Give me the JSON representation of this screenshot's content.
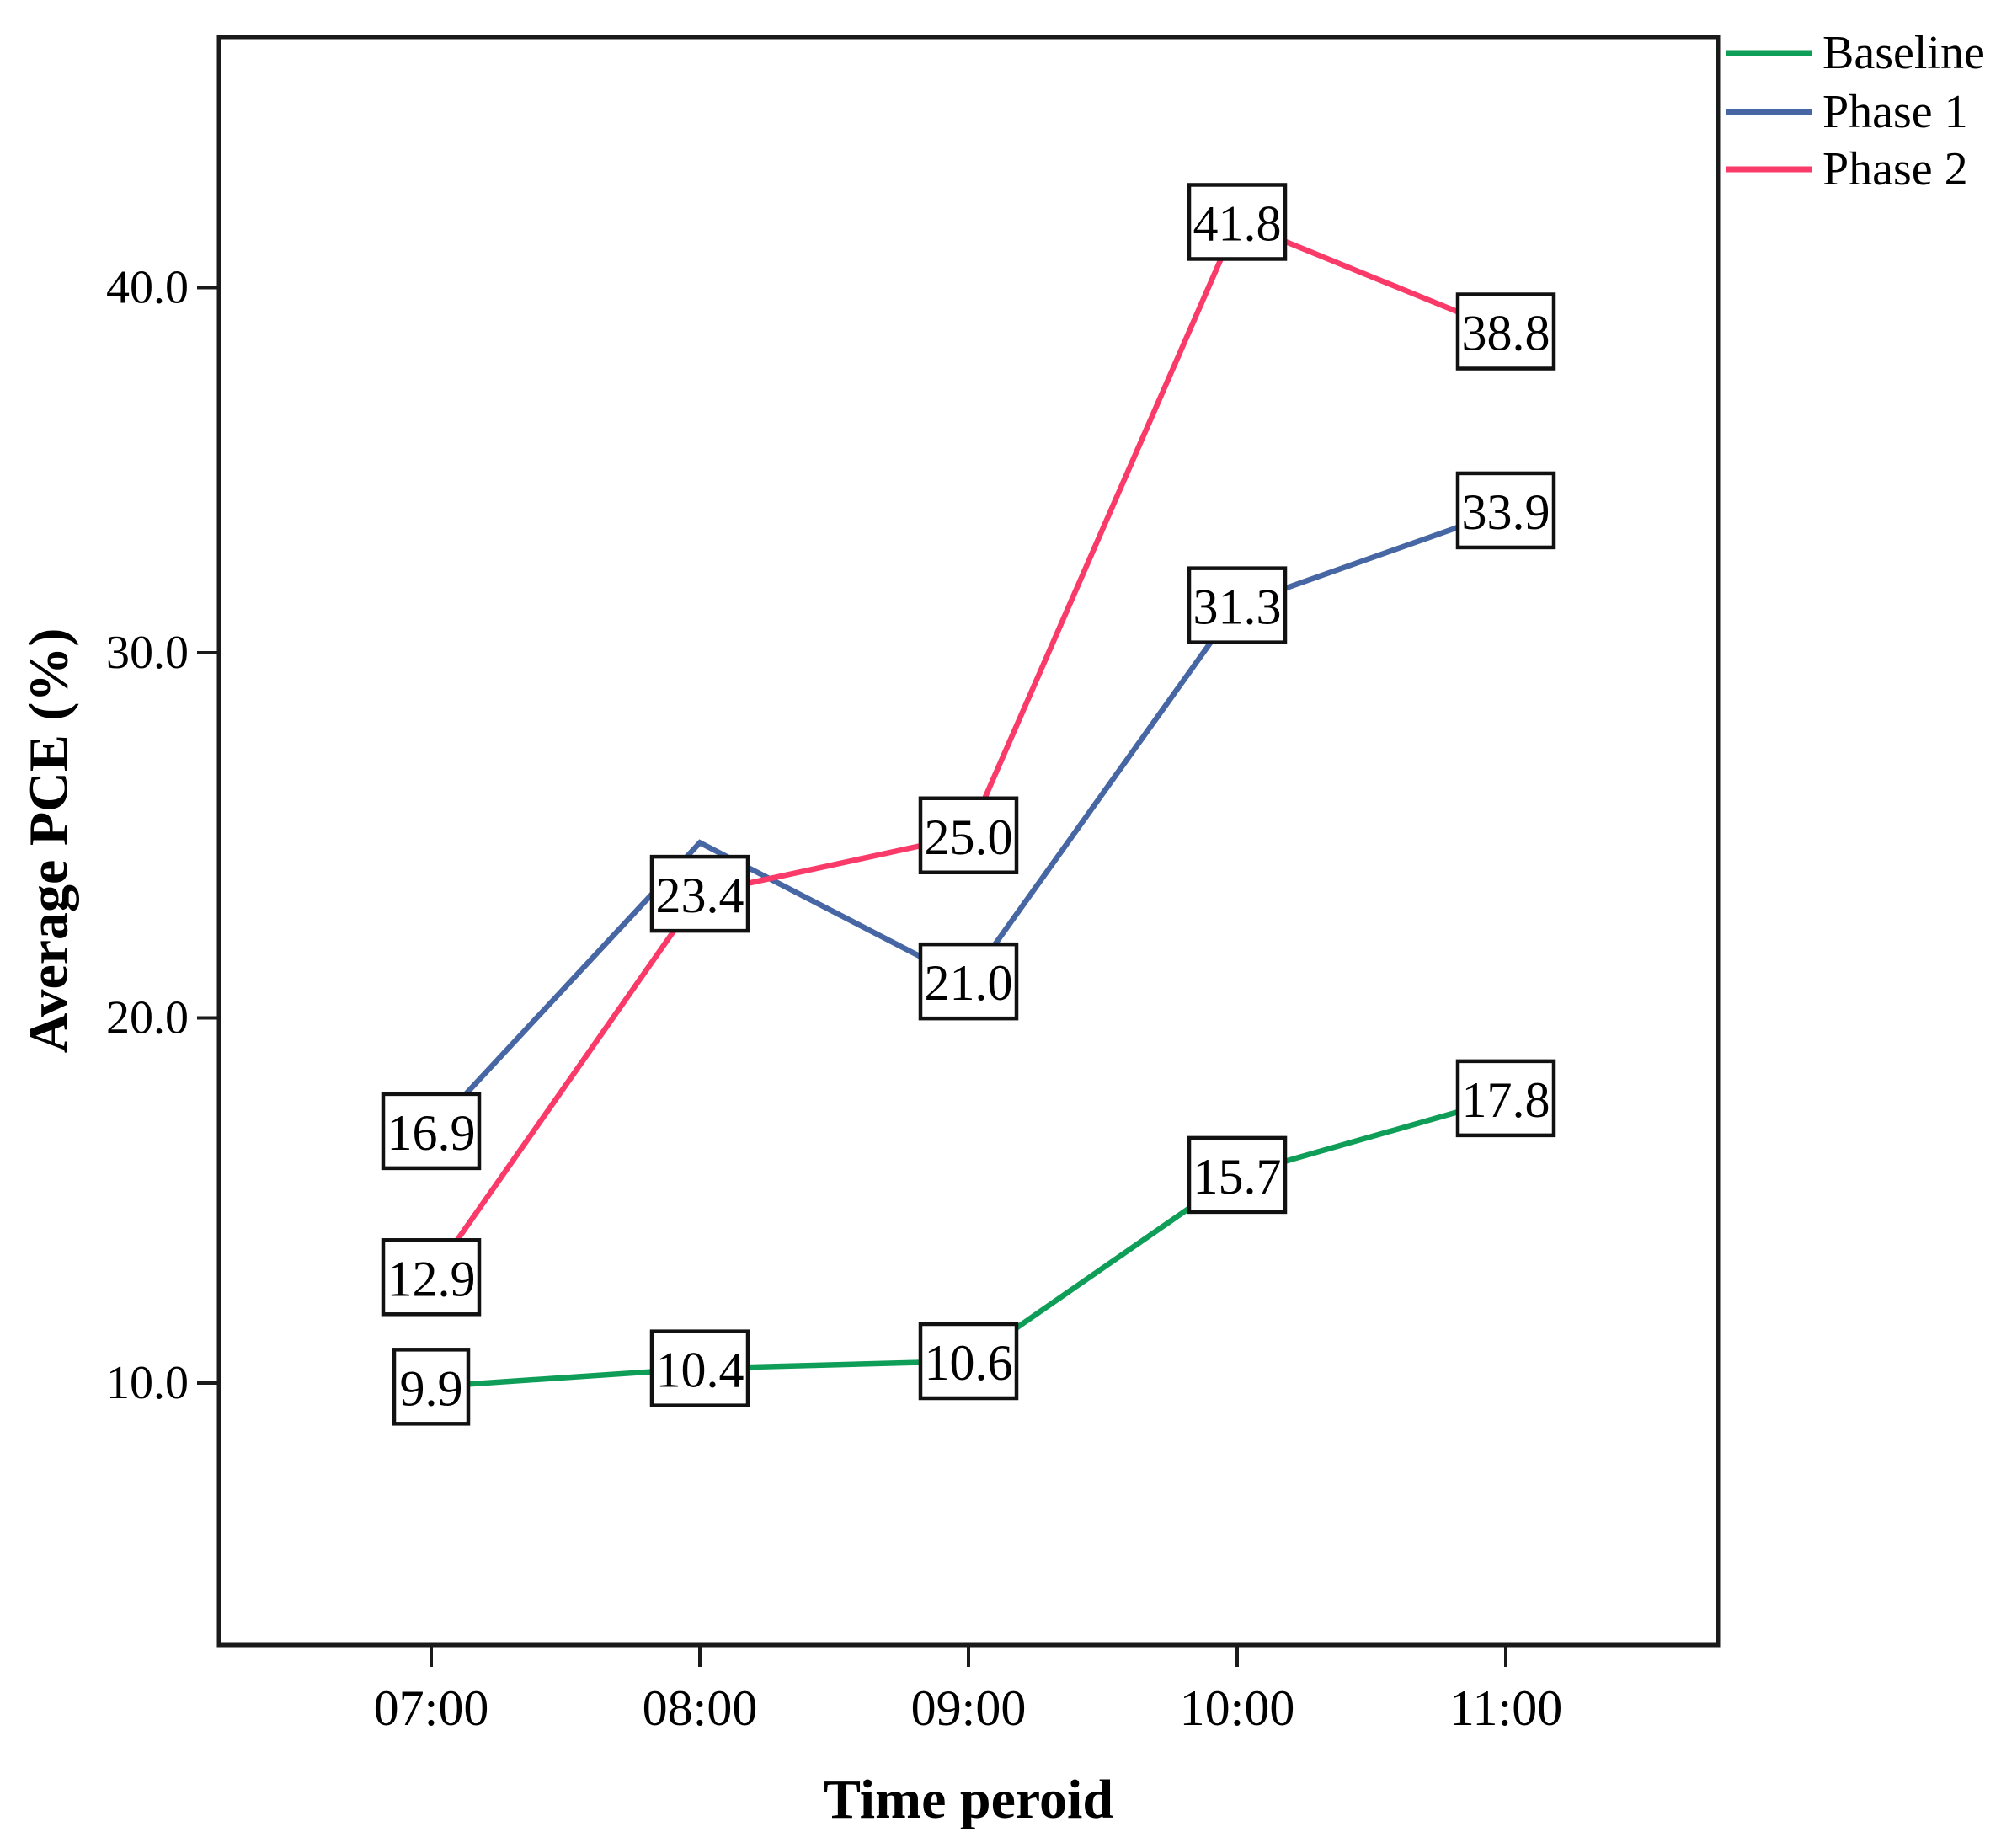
{
  "figure": {
    "background": "#ffffff",
    "axis_color": "#1a1a1a"
  },
  "chart_data": {
    "type": "line",
    "title": "",
    "xlabel": "Time peroid",
    "ylabel": "Average PCE (%)",
    "categories": [
      "07:00",
      "08:00",
      "09:00",
      "10:00",
      "11:00"
    ],
    "y_ticks": [
      "10.0",
      "20.0",
      "30.0",
      "40.0"
    ],
    "y_tick_values": [
      10,
      20,
      30,
      40
    ],
    "ylim": [
      2.8,
      46.9
    ],
    "grid": false,
    "legend_position": "top-right-outside",
    "point_label_style": "boxed",
    "box_style": {
      "fill": "#ffffff",
      "border": "#111111"
    },
    "series": [
      {
        "name": "Baseline",
        "color": "#0f9e58",
        "values": [
          9.9,
          10.4,
          10.6,
          15.7,
          17.8
        ],
        "labels": [
          "9.9",
          "10.4",
          "10.6",
          "15.7",
          "17.8"
        ]
      },
      {
        "name": "Phase 1",
        "color": "#4766a4",
        "values": [
          16.9,
          24.8,
          21.0,
          31.3,
          33.9
        ],
        "labels": [
          "16.9",
          null,
          "21.0",
          "31.3",
          "33.9"
        ]
      },
      {
        "name": "Phase 2",
        "color": "#fa3a68",
        "values": [
          12.9,
          23.4,
          25.0,
          41.8,
          38.8
        ],
        "labels": [
          "12.9",
          "23.4",
          "25.0",
          "41.8",
          "38.8"
        ]
      }
    ]
  }
}
